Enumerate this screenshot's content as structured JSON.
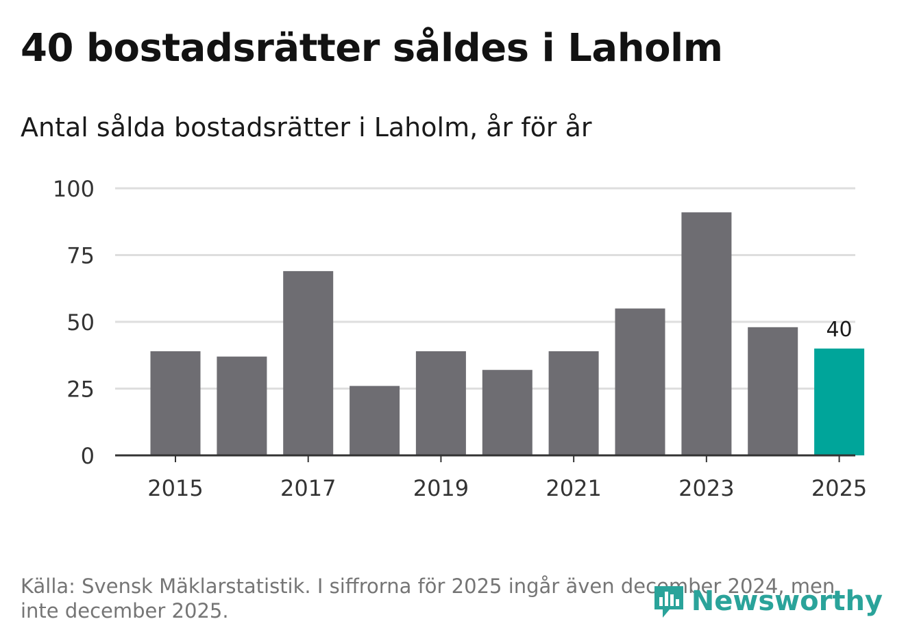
{
  "title": "40 bostadsrätter såldes i Laholm",
  "subtitle": "Antal sålda bostadsrätter i Laholm, år för år",
  "footer": "Källa: Svensk Mäklarstatistik. I siffrorna för 2025 ingår även december 2024, men inte december 2025.",
  "logo": {
    "text": "Newsworthy",
    "icon": "newsworthy-bar-chart-icon"
  },
  "colors": {
    "bar": "#6e6d72",
    "highlight": "#00a59a",
    "grid": "#dedede",
    "axis": "#333333",
    "tick_text": "#333333"
  },
  "chart_data": {
    "type": "bar",
    "title": "40 bostadsrätter såldes i Laholm",
    "subtitle": "Antal sålda bostadsrätter i Laholm, år för år",
    "xlabel": "",
    "ylabel": "",
    "categories": [
      "2015",
      "2016",
      "2017",
      "2018",
      "2019",
      "2020",
      "2021",
      "2022",
      "2023",
      "2024",
      "2025"
    ],
    "values": [
      39,
      37,
      69,
      26,
      39,
      32,
      39,
      55,
      91,
      48,
      40
    ],
    "x_tick_labels": [
      "2015",
      "2017",
      "2019",
      "2021",
      "2023",
      "2025"
    ],
    "y_ticks": [
      0,
      25,
      50,
      75,
      100
    ],
    "y_tick_labels": [
      "0",
      "25",
      "50",
      "75",
      "100"
    ],
    "ylim": [
      0,
      100
    ],
    "grid": true,
    "highlight_category": "2025",
    "data_labels": [
      {
        "category": "2025",
        "text": "40"
      }
    ]
  }
}
